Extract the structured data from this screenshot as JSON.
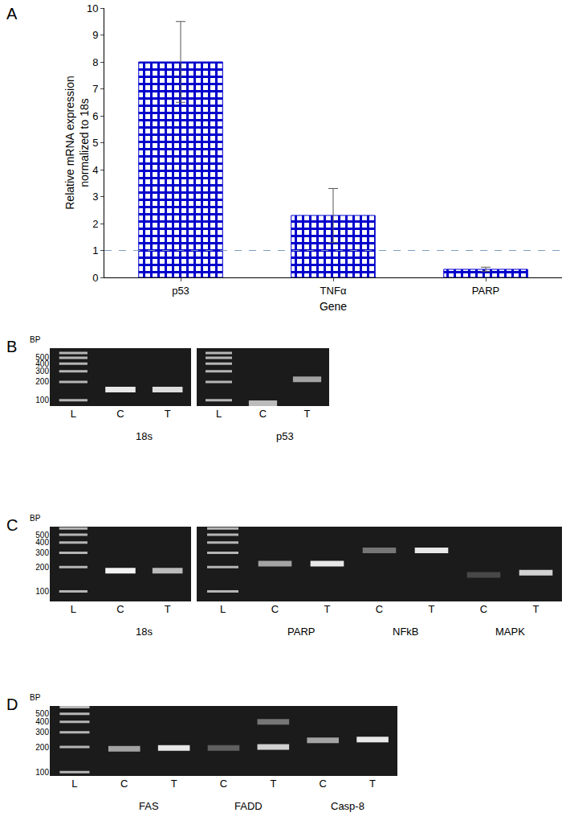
{
  "chart_data": {
    "type": "bar",
    "panel": "A",
    "categories": [
      "p53",
      "TNFα",
      "PARP"
    ],
    "values": [
      8,
      2.3,
      0.3
    ],
    "error": [
      1.5,
      1.0,
      0.08
    ],
    "color": "#0000cc",
    "ylim": [
      0,
      10
    ],
    "yticks": [
      0,
      1,
      2,
      3,
      4,
      5,
      6,
      7,
      8,
      9,
      10
    ],
    "y_label": [
      "Relative mRNA expression",
      "normalized to 18s"
    ],
    "x_label": "Gene",
    "reference_line": 1,
    "grid": false
  },
  "gels": [
    {
      "panel": "B",
      "unit": "BP",
      "ylim": [
        80,
        720
      ],
      "yticks": [
        100,
        200,
        300,
        400,
        500
      ],
      "lanes": [
        "L",
        "C",
        "T"
      ],
      "ladder_lane": 0,
      "ladder": [
        100,
        200,
        300,
        400,
        500,
        600
      ],
      "groups": [
        {
          "label": "18s",
          "lanes": [
            1,
            2
          ]
        }
      ],
      "bands": [
        {
          "lane": 1,
          "bp": 150,
          "intensity": 0.9
        },
        {
          "lane": 2,
          "bp": 150,
          "intensity": 0.85
        }
      ]
    },
    {
      "ylim": [
        80,
        720
      ],
      "tick_labels": "x",
      "lanes": [
        "L",
        "C",
        "T"
      ],
      "ladder_lane": 0,
      "ladder": [
        100,
        200,
        300,
        400,
        500,
        600
      ],
      "groups": [
        {
          "label": "p53",
          "lanes": [
            1,
            2
          ]
        }
      ],
      "bands": [
        {
          "lane": 1,
          "bp": 89,
          "intensity": 0.7
        },
        {
          "lane": 2,
          "bp": 220,
          "intensity": 0.6
        }
      ]
    },
    {
      "panel": "C",
      "unit": "BP",
      "ylim": [
        75,
        630
      ],
      "yticks": [
        100,
        200,
        300,
        400,
        500
      ],
      "lanes": [
        "L",
        "C",
        "T"
      ],
      "ladder_lane": 0,
      "ladder": [
        100,
        200,
        300,
        400,
        500,
        600
      ],
      "groups": [
        {
          "label": "18s",
          "lanes": [
            1,
            2
          ]
        }
      ],
      "bands": [
        {
          "lane": 1,
          "bp": 180,
          "intensity": 0.95
        },
        {
          "lane": 2,
          "bp": 180,
          "intensity": 0.7
        }
      ]
    },
    {
      "ylim": [
        75,
        630
      ],
      "tick_labels": "x",
      "lanes": [
        "L",
        "C",
        "T",
        "C",
        "T",
        "C",
        "T"
      ],
      "ladder_lane": 0,
      "ladder": [
        100,
        200,
        300,
        400,
        500,
        600
      ],
      "groups": [
        {
          "label": "PARP",
          "lanes": [
            1,
            2
          ]
        },
        {
          "label": "NFkB",
          "lanes": [
            3,
            4
          ]
        },
        {
          "label": "MAPK",
          "lanes": [
            5,
            6
          ]
        }
      ],
      "bands": [
        {
          "lane": 1,
          "bp": 220,
          "intensity": 0.6
        },
        {
          "lane": 2,
          "bp": 220,
          "intensity": 0.9
        },
        {
          "lane": 3,
          "bp": 320,
          "intensity": 0.4
        },
        {
          "lane": 4,
          "bp": 320,
          "intensity": 0.9
        },
        {
          "lane": 5,
          "bp": 160,
          "intensity": 0.2
        },
        {
          "lane": 6,
          "bp": 170,
          "intensity": 0.8
        }
      ]
    },
    {
      "panel": "D",
      "unit": "BP",
      "ylim": [
        90,
        620
      ],
      "yticks": [
        100,
        200,
        300,
        400,
        500
      ],
      "lanes": [
        "L",
        "C",
        "T",
        "C",
        "T",
        "C",
        "T"
      ],
      "ladder_lane": 0,
      "ladder": [
        100,
        200,
        300,
        400,
        500,
        600
      ],
      "groups": [
        {
          "label": "FAS",
          "lanes": [
            1,
            2
          ]
        },
        {
          "label": "FADD",
          "lanes": [
            3,
            4
          ]
        },
        {
          "label": "Casp-8",
          "lanes": [
            5,
            6
          ]
        }
      ],
      "bands": [
        {
          "lane": 1,
          "bp": 190,
          "intensity": 0.6
        },
        {
          "lane": 2,
          "bp": 195,
          "intensity": 0.9
        },
        {
          "lane": 3,
          "bp": 195,
          "intensity": 0.3
        },
        {
          "lane": 4,
          "bp": 200,
          "intensity": 0.8
        },
        {
          "lane": 4,
          "bp": 400,
          "intensity": 0.4
        },
        {
          "lane": 5,
          "bp": 240,
          "intensity": 0.6
        },
        {
          "lane": 6,
          "bp": 245,
          "intensity": 0.9
        }
      ]
    }
  ]
}
